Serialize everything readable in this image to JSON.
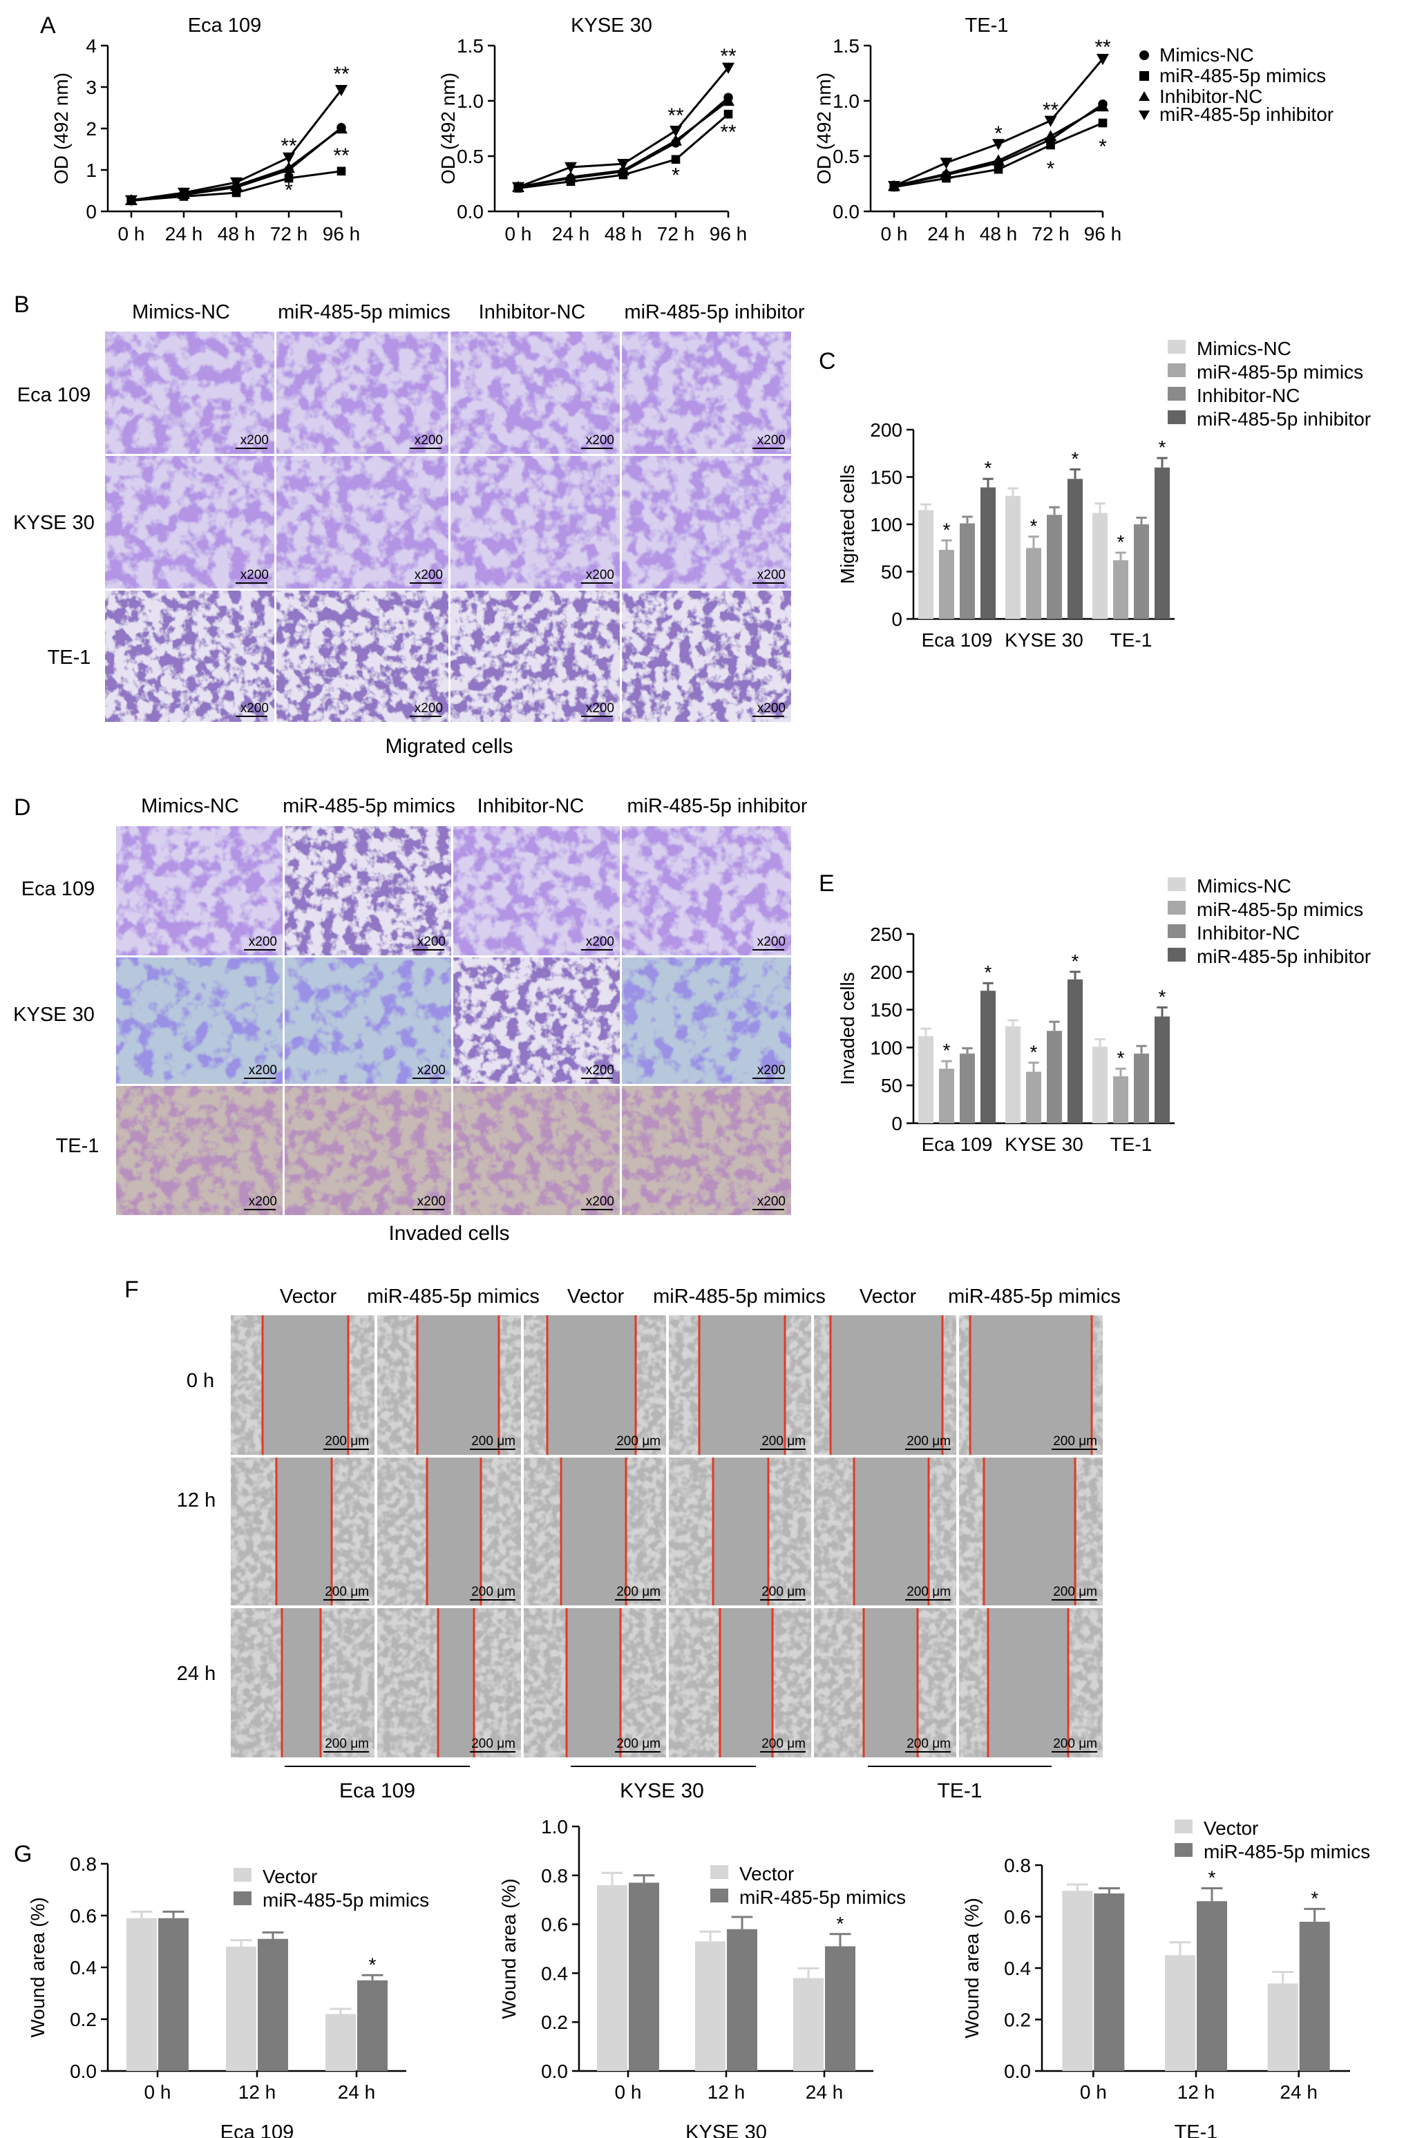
{
  "panel_letters": {
    "a": "A",
    "b": "B",
    "c": "C",
    "d": "D",
    "e": "E",
    "f": "F",
    "g": "G"
  },
  "colors": {
    "mimics_nc": "#d6d6d6",
    "mimics": "#a8a8a8",
    "inhibitor_nc": "#8a8a8a",
    "inhibitor": "#636363",
    "vector": "#d6d6d6",
    "mimics_bar": "#7c7c7c",
    "wound_line": "#e03a25"
  },
  "panel_a": {
    "legend": [
      "Mimics-NC",
      "miR-485-5p mimics",
      "Inhibitor-NC",
      "miR-485-5p inhibitor"
    ]
  },
  "panel_b": {
    "columns": [
      "Mimics-NC",
      "miR-485-5p mimics",
      "Inhibitor-NC",
      "miR-485-5p inhibitor"
    ],
    "rows": [
      "Eca 109",
      "KYSE 30",
      "TE-1"
    ],
    "scale": "x200",
    "caption": "Migrated cells"
  },
  "panel_d": {
    "columns": [
      "Mimics-NC",
      "miR-485-5p mimics",
      "Inhibitor-NC",
      "miR-485-5p inhibitor"
    ],
    "rows": [
      "Eca 109",
      "KYSE 30",
      "TE-1"
    ],
    "scale": "x200",
    "caption": "Invaded cells"
  },
  "panel_f": {
    "columns": [
      "Vector",
      "miR-485-5p mimics",
      "Vector",
      "miR-485-5p mimics",
      "Vector",
      "miR-485-5p mimics"
    ],
    "rows": [
      "0 h",
      "12 h",
      "24 h"
    ],
    "scale": "200 μm",
    "groups": [
      "Eca 109",
      "KYSE 30",
      "TE-1"
    ]
  },
  "chart_data": [
    {
      "id": "A1",
      "type": "line",
      "title": "Eca 109",
      "ylabel": "OD (492 nm)",
      "x": [
        "0 h",
        "24 h",
        "48 h",
        "72 h",
        "96 h"
      ],
      "yticks": [
        "0",
        "1",
        "2",
        "3",
        "4"
      ],
      "ylim": [
        0,
        4
      ],
      "series": [
        {
          "name": "Mimics-NC",
          "marker": "circle",
          "values": [
            0.27,
            0.4,
            0.58,
            1.0,
            2.02
          ]
        },
        {
          "name": "miR-485-5p mimics",
          "marker": "square",
          "values": [
            0.26,
            0.36,
            0.45,
            0.8,
            0.97
          ]
        },
        {
          "name": "Inhibitor-NC",
          "marker": "triangle-up",
          "values": [
            0.27,
            0.42,
            0.62,
            1.05,
            2.0
          ]
        },
        {
          "name": "miR-485-5p inhibitor",
          "marker": "triangle-down",
          "values": [
            0.27,
            0.45,
            0.7,
            1.3,
            2.93
          ]
        }
      ],
      "annotations": [
        {
          "x": "72 h",
          "y": 1.62,
          "text": "**"
        },
        {
          "x": "72 h",
          "y": 0.55,
          "text": "*"
        },
        {
          "x": "96 h",
          "y": 3.35,
          "text": "**"
        },
        {
          "x": "96 h",
          "y": 1.38,
          "text": "**"
        }
      ]
    },
    {
      "id": "A2",
      "type": "line",
      "title": "KYSE 30",
      "ylabel": "OD (492 nm)",
      "x": [
        "0 h",
        "24 h",
        "48 h",
        "72 h",
        "96 h"
      ],
      "yticks": [
        "0.0",
        "0.5",
        "1.0",
        "1.5"
      ],
      "ylim": [
        0,
        1.5
      ],
      "series": [
        {
          "name": "Mimics-NC",
          "marker": "circle",
          "values": [
            0.22,
            0.3,
            0.36,
            0.62,
            1.03
          ]
        },
        {
          "name": "miR-485-5p mimics",
          "marker": "square",
          "values": [
            0.21,
            0.27,
            0.33,
            0.47,
            0.88
          ]
        },
        {
          "name": "Inhibitor-NC",
          "marker": "triangle-up",
          "values": [
            0.22,
            0.31,
            0.37,
            0.64,
            1.0
          ]
        },
        {
          "name": "miR-485-5p inhibitor",
          "marker": "triangle-down",
          "values": [
            0.22,
            0.4,
            0.43,
            0.73,
            1.3
          ]
        }
      ],
      "annotations": [
        {
          "x": "72 h",
          "y": 0.88,
          "text": "**"
        },
        {
          "x": "72 h",
          "y": 0.34,
          "text": "*"
        },
        {
          "x": "96 h",
          "y": 1.42,
          "text": "**"
        },
        {
          "x": "96 h",
          "y": 0.73,
          "text": "**"
        }
      ]
    },
    {
      "id": "A3",
      "type": "line",
      "title": "TE-1",
      "ylabel": "OD (492 nm)",
      "x": [
        "0 h",
        "24 h",
        "48 h",
        "72 h",
        "96 h"
      ],
      "yticks": [
        "0.0",
        "0.5",
        "1.0",
        "1.5"
      ],
      "ylim": [
        0,
        1.5
      ],
      "series": [
        {
          "name": "Mimics-NC",
          "marker": "circle",
          "values": [
            0.23,
            0.33,
            0.44,
            0.65,
            0.97
          ]
        },
        {
          "name": "miR-485-5p mimics",
          "marker": "square",
          "values": [
            0.22,
            0.3,
            0.38,
            0.6,
            0.8
          ]
        },
        {
          "name": "Inhibitor-NC",
          "marker": "triangle-up",
          "values": [
            0.23,
            0.34,
            0.46,
            0.68,
            0.95
          ]
        },
        {
          "name": "miR-485-5p inhibitor",
          "marker": "triangle-down",
          "values": [
            0.23,
            0.44,
            0.61,
            0.82,
            1.38
          ]
        }
      ],
      "annotations": [
        {
          "x": "48 h",
          "y": 0.72,
          "text": "*"
        },
        {
          "x": "72 h",
          "y": 0.93,
          "text": "**"
        },
        {
          "x": "72 h",
          "y": 0.4,
          "text": "*"
        },
        {
          "x": "96 h",
          "y": 1.5,
          "text": "**"
        },
        {
          "x": "96 h",
          "y": 0.6,
          "text": "*"
        }
      ]
    },
    {
      "id": "C",
      "type": "bar",
      "ylabel": "Migrated cells",
      "categories": [
        "Eca 109",
        "KYSE 30",
        "TE-1"
      ],
      "yticks": [
        "0",
        "50",
        "100",
        "150",
        "200"
      ],
      "ylim": [
        0,
        200
      ],
      "legend": "top-right",
      "series": [
        {
          "name": "Mimics-NC",
          "values": [
            115,
            130,
            112
          ],
          "errors": [
            6,
            8,
            10
          ],
          "stars": [
            "",
            "",
            ""
          ]
        },
        {
          "name": "miR-485-5p mimics",
          "values": [
            73,
            75,
            62
          ],
          "errors": [
            10,
            12,
            8
          ],
          "stars": [
            "*",
            "*",
            "*"
          ]
        },
        {
          "name": "Inhibitor-NC",
          "values": [
            101,
            110,
            100
          ],
          "errors": [
            7,
            8,
            7
          ],
          "stars": [
            "",
            "",
            ""
          ]
        },
        {
          "name": "miR-485-5p inhibitor",
          "values": [
            139,
            148,
            160
          ],
          "errors": [
            9,
            10,
            10
          ],
          "stars": [
            "*",
            "*",
            "*"
          ]
        }
      ]
    },
    {
      "id": "E",
      "type": "bar",
      "ylabel": "Invaded cells",
      "categories": [
        "Eca 109",
        "KYSE 30",
        "TE-1"
      ],
      "yticks": [
        "0",
        "50",
        "100",
        "150",
        "200",
        "250"
      ],
      "ylim": [
        0,
        250
      ],
      "legend": "top-right",
      "series": [
        {
          "name": "Mimics-NC",
          "values": [
            115,
            128,
            101
          ],
          "errors": [
            10,
            8,
            10
          ],
          "stars": [
            "",
            "",
            ""
          ]
        },
        {
          "name": "miR-485-5p mimics",
          "values": [
            72,
            68,
            62
          ],
          "errors": [
            10,
            12,
            10
          ],
          "stars": [
            "*",
            "*",
            "*"
          ]
        },
        {
          "name": "Inhibitor-NC",
          "values": [
            92,
            122,
            92
          ],
          "errors": [
            7,
            12,
            10
          ],
          "stars": [
            "",
            "",
            ""
          ]
        },
        {
          "name": "miR-485-5p inhibitor",
          "values": [
            175,
            190,
            141
          ],
          "errors": [
            10,
            10,
            12
          ],
          "stars": [
            "*",
            "*",
            "*"
          ]
        }
      ]
    },
    {
      "id": "G1",
      "type": "bar",
      "xlabel": "Eca 109",
      "ylabel": "Wound area (%)",
      "categories": [
        "0 h",
        "12 h",
        "24 h"
      ],
      "yticks": [
        "0.0",
        "0.2",
        "0.4",
        "0.6",
        "0.8"
      ],
      "ylim": [
        0,
        0.8
      ],
      "series": [
        {
          "name": "Vector",
          "values": [
            0.59,
            0.48,
            0.22
          ],
          "errors": [
            0.025,
            0.025,
            0.02
          ],
          "stars": [
            "",
            "",
            ""
          ]
        },
        {
          "name": "miR-485-5p mimics",
          "values": [
            0.59,
            0.51,
            0.35
          ],
          "errors": [
            0.025,
            0.025,
            0.02
          ],
          "stars": [
            "",
            "",
            "*"
          ]
        }
      ]
    },
    {
      "id": "G2",
      "type": "bar",
      "xlabel": "KYSE 30",
      "ylabel": "Wound area (%)",
      "categories": [
        "0 h",
        "12 h",
        "24 h"
      ],
      "yticks": [
        "0.0",
        "0.2",
        "0.4",
        "0.6",
        "0.8",
        "1.0"
      ],
      "ylim": [
        0,
        1.0
      ],
      "series": [
        {
          "name": "Vector",
          "values": [
            0.76,
            0.53,
            0.38
          ],
          "errors": [
            0.05,
            0.04,
            0.04
          ],
          "stars": [
            "",
            "",
            ""
          ]
        },
        {
          "name": "miR-485-5p mimics",
          "values": [
            0.77,
            0.58,
            0.51
          ],
          "errors": [
            0.03,
            0.05,
            0.05
          ],
          "stars": [
            "",
            "",
            "*"
          ]
        }
      ]
    },
    {
      "id": "G3",
      "type": "bar",
      "xlabel": "TE-1",
      "ylabel": "Wound area (%)",
      "categories": [
        "0 h",
        "12 h",
        "24 h"
      ],
      "yticks": [
        "0.0",
        "0.2",
        "0.4",
        "0.6",
        "0.8"
      ],
      "ylim": [
        0,
        0.8
      ],
      "series": [
        {
          "name": "Vector",
          "values": [
            0.7,
            0.45,
            0.34
          ],
          "errors": [
            0.025,
            0.05,
            0.045
          ],
          "stars": [
            "",
            "",
            ""
          ]
        },
        {
          "name": "miR-485-5p mimics",
          "values": [
            0.69,
            0.66,
            0.58
          ],
          "errors": [
            0.02,
            0.05,
            0.05
          ],
          "stars": [
            "",
            "*",
            "*"
          ]
        }
      ]
    }
  ]
}
